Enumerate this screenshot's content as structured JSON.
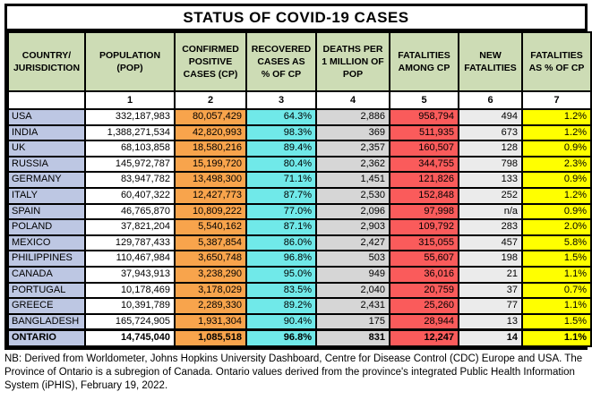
{
  "title": "STATUS OF COVID-19 CASES",
  "table": {
    "header_display": [
      "COUNTRY/\nJURISDICTION",
      "POPULATION\n(POP)",
      "CONFIRMED\nPOSITIVE\nCASES (CP)",
      "RECOVERED\nCASES AS\n% OF CP",
      "DEATHS PER\n1 MILLION OF\nPOP",
      "FATALITIES\nAMONG CP",
      "NEW\nFATALITIES",
      "FATALITIES\nAS % OF CP"
    ],
    "column_numbers": [
      "",
      "1",
      "2",
      "3",
      "4",
      "5",
      "6",
      "7"
    ],
    "emphasized_row": "ONTARIO"
  },
  "chart_data": {
    "type": "table",
    "title": "STATUS OF COVID-19 CASES",
    "columns": [
      "COUNTRY/JURISDICTION",
      "POPULATION (POP)",
      "CONFIRMED POSITIVE CASES (CP)",
      "RECOVERED CASES AS % OF CP",
      "DEATHS PER 1 MILLION OF POP",
      "FATALITIES AMONG CP",
      "NEW FATALITIES",
      "FATALITIES AS % OF CP"
    ],
    "rows": [
      [
        "USA",
        "332,187,983",
        "80,057,429",
        "64.3%",
        "2,886",
        "958,794",
        "494",
        "1.2%"
      ],
      [
        "INDIA",
        "1,388,271,534",
        "42,820,993",
        "98.3%",
        "369",
        "511,935",
        "673",
        "1.2%"
      ],
      [
        "UK",
        "68,103,858",
        "18,580,216",
        "89.4%",
        "2,357",
        "160,507",
        "128",
        "0.9%"
      ],
      [
        "RUSSIA",
        "145,972,787",
        "15,199,720",
        "80.4%",
        "2,362",
        "344,755",
        "798",
        "2.3%"
      ],
      [
        "GERMANY",
        "83,947,782",
        "13,498,300",
        "71.1%",
        "1,451",
        "121,826",
        "133",
        "0.9%"
      ],
      [
        "ITALY",
        "60,407,322",
        "12,427,773",
        "87.7%",
        "2,530",
        "152,848",
        "252",
        "1.2%"
      ],
      [
        "SPAIN",
        "46,765,870",
        "10,809,222",
        "77.0%",
        "2,096",
        "97,998",
        "n/a",
        "0.9%"
      ],
      [
        "POLAND",
        "37,821,204",
        "5,540,162",
        "87.1%",
        "2,903",
        "109,792",
        "283",
        "2.0%"
      ],
      [
        "MEXICO",
        "129,787,433",
        "5,387,854",
        "86.0%",
        "2,427",
        "315,055",
        "457",
        "5.8%"
      ],
      [
        "PHILIPPINES",
        "110,467,984",
        "3,650,748",
        "96.8%",
        "503",
        "55,607",
        "198",
        "1.5%"
      ],
      [
        "CANADA",
        "37,943,913",
        "3,238,290",
        "95.0%",
        "949",
        "36,016",
        "21",
        "1.1%"
      ],
      [
        "PORTUGAL",
        "10,178,469",
        "3,178,029",
        "83.5%",
        "2,040",
        "20,759",
        "37",
        "0.7%"
      ],
      [
        "GREECE",
        "10,391,789",
        "2,289,330",
        "89.2%",
        "2,431",
        "25,260",
        "77",
        "1.1%"
      ],
      [
        "BANGLADESH",
        "165,724,905",
        "1,931,304",
        "90.4%",
        "175",
        "28,944",
        "13",
        "1.5%"
      ],
      [
        "ONTARIO",
        "14,745,040",
        "1,085,518",
        "96.8%",
        "831",
        "12,247",
        "14",
        "1.1%"
      ]
    ]
  },
  "colors": {
    "header_bg": "#cddcb5",
    "country_col": "#bdc7e3",
    "population_col": "#ffffff",
    "confirmed_col": "#f8a44c",
    "recovered_col": "#70e9e9",
    "deaths_per_million_col": "#d6d6d6",
    "fatalities_col": "#fa5b5b",
    "new_fatalities_col": "#ebebeb",
    "fatalities_pct_col": "#ffff00",
    "border": "#000000"
  },
  "footnote": "NB: Derived from Worldometer, Johns Hopkins University Dashboard, Centre for Disease Control (CDC) Europe and USA. The Province of Ontario is a subregion of Canada. Ontario values derived from the province's integrated Public Health Information System (iPHIS), February 19, 2022."
}
